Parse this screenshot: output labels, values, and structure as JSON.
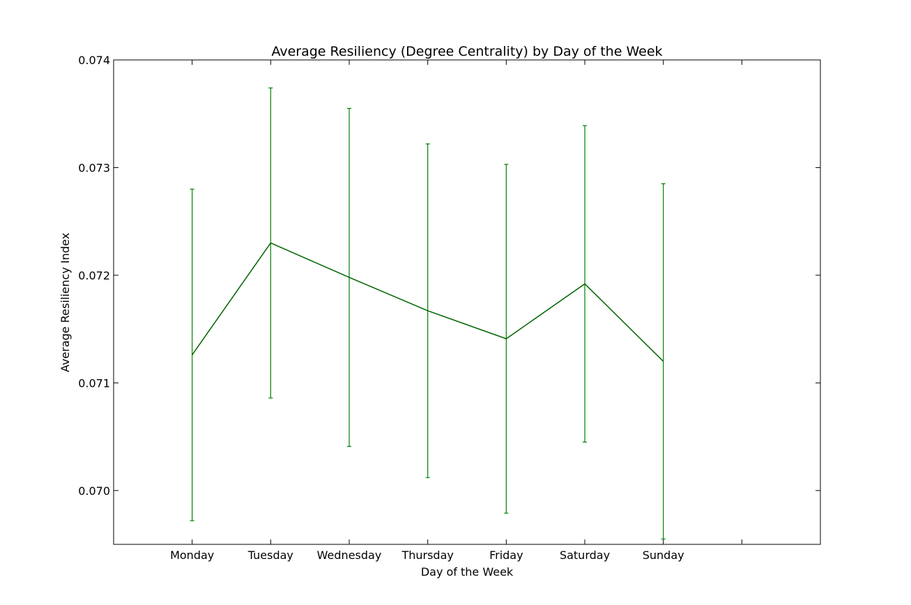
{
  "chart_data": {
    "type": "line",
    "title": "Average Resiliency (Degree Centrality) by Day of the Week",
    "xlabel": "Day of the Week",
    "ylabel": "Average Resiliency Index",
    "categories": [
      "Monday",
      "Tuesday",
      "Wednesday",
      "Thursday",
      "Friday",
      "Saturday",
      "Sunday"
    ],
    "x": [
      1,
      2,
      3,
      4,
      5,
      6,
      7
    ],
    "xlim": [
      0,
      9
    ],
    "ylim": [
      0.0695,
      0.074
    ],
    "yticks": [
      0.07,
      0.071,
      0.072,
      0.073,
      0.074
    ],
    "ytick_labels": [
      "0.070",
      "0.071",
      "0.072",
      "0.073",
      "0.074"
    ],
    "extra_xticks": [
      8
    ],
    "series": [
      {
        "values": [
          0.07126,
          0.0723,
          0.07198,
          0.07167,
          0.07141,
          0.07192,
          0.0712
        ],
        "errors": [
          0.00154,
          0.00144,
          0.00157,
          0.00155,
          0.00162,
          0.00147,
          0.00165
        ],
        "color": "#006400",
        "errorbar_color": "#008000"
      }
    ],
    "grid": false,
    "legend": "none"
  }
}
